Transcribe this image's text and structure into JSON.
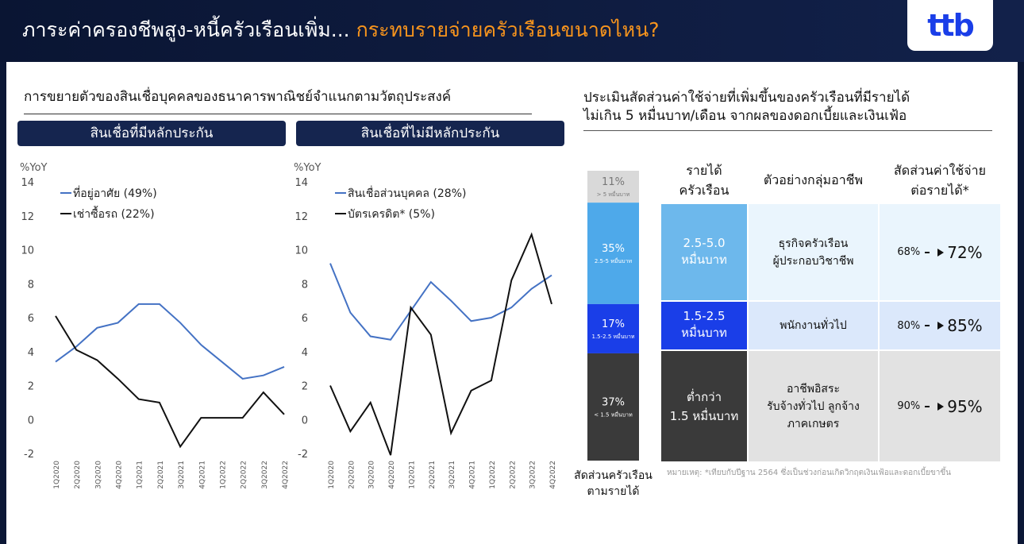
{
  "header": {
    "title_part1": "ภาระค่าครองชีพสูง-หนี้ครัวเรือนเพิ่ม...",
    "title_part2": "กระทบรายจ่ายครัวเรือนขนาดไหน?",
    "logo": "ttb"
  },
  "left_title": "การขยายตัวของสินเชื่อบุคคลของธนาคารพาณิชย์จำแนกตามวัตถุประสงค์",
  "right_title": "ประเมินสัดส่วนค่าใช้จ่ายที่เพิ่มขึ้นของครัวเรือนที่มีรายได้\nไม่เกิน 5 หมื่นบาท/เดือน จากผลของดอกเบี้ยและเงินเฟ้อ",
  "chart_data": [
    {
      "type": "line",
      "title": "สินเชื่อที่มีหลักประกัน",
      "ylabel": "%YoY",
      "categories": [
        "1Q2020",
        "2Q2020",
        "3Q2020",
        "4Q2020",
        "1Q2021",
        "2Q2021",
        "3Q2021",
        "4Q2021",
        "1Q2022",
        "2Q2022",
        "3Q2022",
        "4Q2022"
      ],
      "series": [
        {
          "name": "ที่อยู่อาศัย (49%)",
          "color": "#4472c4",
          "values": [
            3.4,
            4.3,
            5.4,
            5.7,
            6.8,
            6.8,
            5.7,
            4.4,
            3.4,
            2.4,
            2.6,
            3.1
          ]
        },
        {
          "name": "เช่าซื้อรถ (22%)",
          "color": "#111111",
          "values": [
            6.1,
            4.1,
            3.5,
            2.4,
            1.2,
            1.0,
            -1.6,
            0.1,
            0.1,
            0.1,
            1.6,
            0.3
          ]
        }
      ],
      "ylim": [
        -2,
        14
      ],
      "yticks": [
        -2,
        0,
        2,
        4,
        6,
        8,
        10,
        12,
        14
      ],
      "grid": false
    },
    {
      "type": "line",
      "title": "สินเชื่อที่ไม่มีหลักประกัน",
      "ylabel": "%YoY",
      "categories": [
        "1Q2020",
        "2Q2020",
        "3Q2020",
        "4Q2020",
        "1Q2021",
        "2Q2021",
        "3Q2021",
        "4Q2021",
        "1Q2022",
        "2Q2022",
        "3Q2022",
        "4Q2022"
      ],
      "series": [
        {
          "name": "สินเชื่อส่วนบุคคล (28%)",
          "color": "#4472c4",
          "values": [
            9.2,
            6.3,
            4.9,
            4.7,
            6.4,
            8.1,
            7.0,
            5.8,
            6.0,
            6.6,
            7.7,
            8.5
          ]
        },
        {
          "name": "บัตรเครดิต* (5%)",
          "color": "#111111",
          "values": [
            2.0,
            -0.7,
            1.0,
            -2.1,
            6.6,
            5.0,
            -0.8,
            1.7,
            2.3,
            8.2,
            10.9,
            6.8
          ]
        }
      ],
      "ylim": [
        -2,
        14
      ],
      "yticks": [
        -2,
        0,
        2,
        4,
        6,
        8,
        10,
        12,
        14
      ],
      "grid": false
    },
    {
      "type": "stacked_bar",
      "xlabel": "สัดส่วนครัวเรือน\nตามรายได้",
      "series": [
        {
          "name": "> 5 หมื่นบาท",
          "color": "#d9d9d9",
          "values": [
            11
          ],
          "value_labels": [
            "11%"
          ]
        },
        {
          "name": "2.5-5 หมื่นบาท",
          "color": "#4ea9ea",
          "values": [
            35
          ],
          "value_labels": [
            "35%"
          ]
        },
        {
          "name": "1.5-2.5 หมื่นบาท",
          "color": "#1a3ee8",
          "values": [
            17
          ],
          "value_labels": [
            "17%"
          ]
        },
        {
          "name": "< 1.5 หมื่นบาท",
          "color": "#3a3a3a",
          "values": [
            37
          ],
          "value_labels": [
            "37%"
          ]
        }
      ]
    }
  ],
  "table": {
    "headers": [
      "รายได้\nครัวเรือน",
      "ตัวอย่างกลุ่มอาชีพ",
      "สัดส่วนค่าใช้จ่าย\nต่อรายได้*"
    ],
    "rows": [
      [
        "2.5-5.0\nหมื่นบาท",
        "ธุรกิจครัวเรือน\nผู้ประกอบวิชาชีพ",
        "68%",
        "72%"
      ],
      [
        "1.5-2.5\nหมื่นบาท",
        "พนักงานทั่วไป",
        "80%",
        "85%"
      ],
      [
        "ต่ำกว่า\n1.5 หมื่นบาท",
        "อาชีพอิสระ\nรับจ้างทั่วไป ลูกจ้าง\nภาคเกษตร",
        "90%",
        "95%"
      ]
    ]
  },
  "footnote": "หมายเหตุ: *เทียบกับปีฐาน 2564 ซึ่งเป็นช่วงก่อนเกิดวิกฤตเงินเฟ้อและดอกเบี้ยขาขึ้น"
}
